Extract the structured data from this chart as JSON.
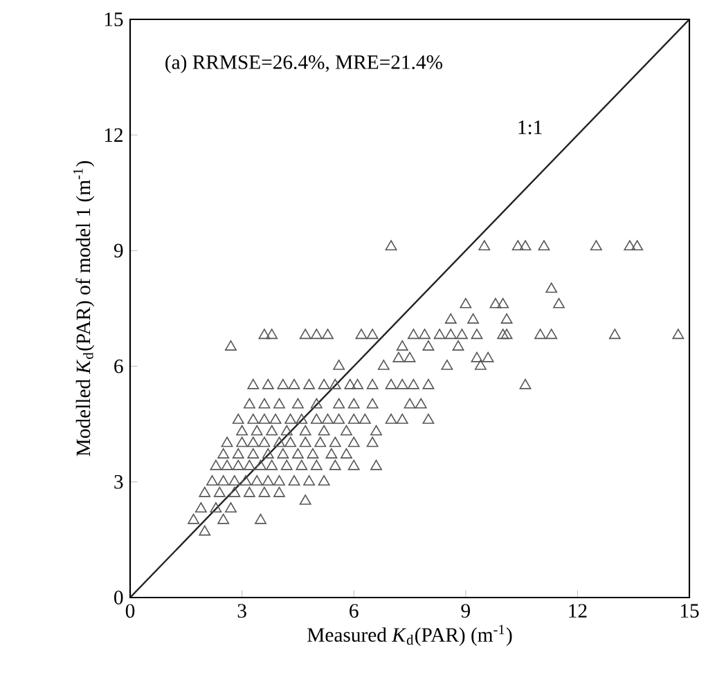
{
  "chart_data": {
    "type": "scatter",
    "xlabel": "Measured *K*$_{d}$(PAR) (m$^{-1}$)",
    "ylabel": "Modelled *K*$_{d}$(PAR) of model 1 (m$^{-1}$)",
    "annotations": [
      "(a) RRMSE=26.4%, MRE=21.4%",
      "1:1"
    ],
    "xlim": [
      0,
      15
    ],
    "ylim": [
      0,
      15
    ],
    "xticks": [
      0,
      3,
      6,
      9,
      12,
      15
    ],
    "yticks": [
      0,
      3,
      6,
      9,
      12,
      15
    ],
    "series": [
      {
        "marker": "triangle",
        "color": "#555555",
        "x": [
          7.0,
          9.5,
          10.4,
          10.6,
          11.1,
          12.5,
          13.4,
          13.6,
          11.3,
          9.0,
          9.8,
          11.5,
          10.0,
          8.6,
          9.2,
          10.1,
          3.6,
          3.8,
          4.7,
          5.0,
          5.3,
          6.2,
          6.5,
          7.6,
          7.9,
          8.3,
          8.6,
          8.9,
          9.3,
          10.0,
          10.1,
          11.0,
          11.3,
          13.0,
          14.7,
          2.7,
          7.3,
          8.0,
          8.8,
          7.2,
          7.5,
          9.3,
          9.6,
          5.6,
          6.8,
          8.5,
          9.4,
          3.3,
          3.7,
          4.1,
          4.4,
          4.8,
          5.2,
          5.5,
          5.9,
          6.1,
          6.5,
          7.0,
          7.3,
          7.6,
          8.0,
          10.6,
          3.2,
          3.6,
          4.0,
          4.5,
          5.0,
          5.6,
          6.0,
          6.5,
          7.5,
          7.8,
          2.9,
          3.3,
          3.6,
          3.9,
          4.3,
          4.6,
          5.0,
          5.3,
          5.6,
          6.0,
          6.3,
          7.0,
          7.3,
          8.0,
          3.0,
          3.4,
          3.8,
          4.2,
          4.7,
          5.2,
          5.8,
          6.6,
          2.6,
          3.0,
          3.3,
          3.6,
          4.0,
          4.3,
          4.7,
          5.1,
          5.5,
          6.0,
          6.5,
          2.5,
          2.9,
          3.3,
          3.7,
          4.1,
          4.5,
          4.9,
          5.4,
          5.8,
          2.3,
          2.6,
          2.9,
          3.2,
          3.5,
          3.8,
          4.2,
          4.6,
          5.0,
          5.5,
          6.0,
          6.6,
          2.2,
          2.5,
          2.8,
          3.1,
          3.4,
          3.7,
          4.0,
          4.4,
          4.8,
          5.2,
          2.0,
          2.4,
          2.8,
          3.2,
          3.6,
          4.0,
          4.7,
          1.9,
          2.3,
          2.7,
          1.7,
          2.5,
          3.5,
          2.0
        ],
        "values": [
          9.1,
          9.1,
          9.1,
          9.1,
          9.1,
          9.1,
          9.1,
          9.1,
          8.0,
          7.6,
          7.6,
          7.6,
          7.6,
          7.2,
          7.2,
          7.2,
          6.8,
          6.8,
          6.8,
          6.8,
          6.8,
          6.8,
          6.8,
          6.8,
          6.8,
          6.8,
          6.8,
          6.8,
          6.8,
          6.8,
          6.8,
          6.8,
          6.8,
          6.8,
          6.8,
          6.5,
          6.5,
          6.5,
          6.5,
          6.2,
          6.2,
          6.2,
          6.2,
          6.0,
          6.0,
          6.0,
          6.0,
          5.5,
          5.5,
          5.5,
          5.5,
          5.5,
          5.5,
          5.5,
          5.5,
          5.5,
          5.5,
          5.5,
          5.5,
          5.5,
          5.5,
          5.5,
          5.0,
          5.0,
          5.0,
          5.0,
          5.0,
          5.0,
          5.0,
          5.0,
          5.0,
          5.0,
          4.6,
          4.6,
          4.6,
          4.6,
          4.6,
          4.6,
          4.6,
          4.6,
          4.6,
          4.6,
          4.6,
          4.6,
          4.6,
          4.6,
          4.3,
          4.3,
          4.3,
          4.3,
          4.3,
          4.3,
          4.3,
          4.3,
          4.0,
          4.0,
          4.0,
          4.0,
          4.0,
          4.0,
          4.0,
          4.0,
          4.0,
          4.0,
          4.0,
          3.7,
          3.7,
          3.7,
          3.7,
          3.7,
          3.7,
          3.7,
          3.7,
          3.7,
          3.4,
          3.4,
          3.4,
          3.4,
          3.4,
          3.4,
          3.4,
          3.4,
          3.4,
          3.4,
          3.4,
          3.4,
          3.0,
          3.0,
          3.0,
          3.0,
          3.0,
          3.0,
          3.0,
          3.0,
          3.0,
          3.0,
          2.7,
          2.7,
          2.7,
          2.7,
          2.7,
          2.7,
          2.5,
          2.3,
          2.3,
          2.3,
          2.0,
          2.0,
          2.0,
          1.7
        ]
      },
      {
        "type": "line",
        "marker": "none",
        "color": "#222222",
        "x": [
          0,
          15
        ],
        "values": [
          0,
          15
        ]
      }
    ]
  }
}
